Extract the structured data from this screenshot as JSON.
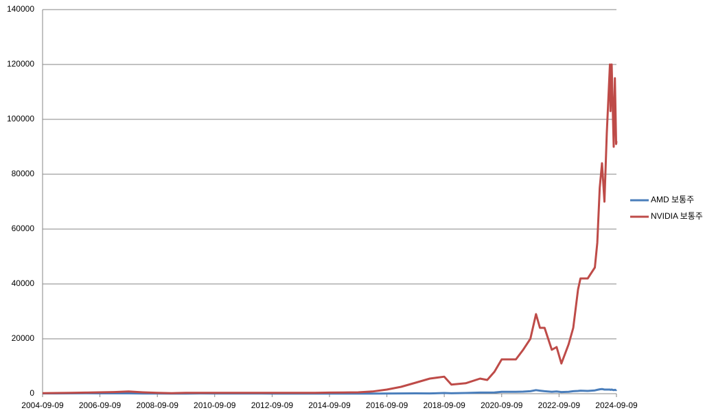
{
  "chart_data": {
    "type": "line",
    "x": [
      "2004-09-09",
      "2005-03-09",
      "2005-09-09",
      "2006-03-09",
      "2006-09-09",
      "2007-03-09",
      "2007-09-09",
      "2008-03-09",
      "2008-09-09",
      "2009-03-09",
      "2009-09-09",
      "2010-03-09",
      "2010-09-09",
      "2011-03-09",
      "2011-09-09",
      "2012-03-09",
      "2012-09-09",
      "2013-03-09",
      "2013-09-09",
      "2014-03-09",
      "2014-09-09",
      "2015-03-09",
      "2015-09-09",
      "2016-03-09",
      "2016-09-09",
      "2017-03-09",
      "2017-09-09",
      "2018-03-09",
      "2018-09-09",
      "2018-12-09",
      "2019-06-09",
      "2019-12-09",
      "2020-03-09",
      "2020-06-09",
      "2020-09-09",
      "2021-03-09",
      "2021-06-09",
      "2021-09-09",
      "2021-11-20",
      "2022-01-09",
      "2022-03-09",
      "2022-06-09",
      "2022-08-09",
      "2022-10-09",
      "2023-01-09",
      "2023-03-09",
      "2023-05-09",
      "2023-06-09",
      "2023-09-09",
      "2023-12-09",
      "2024-01-09",
      "2024-02-09",
      "2024-03-09",
      "2024-04-09",
      "2024-05-09",
      "2024-06-18",
      "2024-06-25",
      "2024-07-10",
      "2024-08-05",
      "2024-08-20",
      "2024-09-05",
      "2024-09-09"
    ],
    "xlim": [
      "2004-09-09",
      "2024-09-09"
    ],
    "xticks": [
      "2004-09-09",
      "2006-09-09",
      "2008-09-09",
      "2010-09-09",
      "2012-09-09",
      "2014-09-09",
      "2016-09-09",
      "2018-09-09",
      "2020-09-09",
      "2022-09-09",
      "2024-09-09"
    ],
    "ylim": [
      0,
      140000
    ],
    "yticks": [
      0,
      20000,
      40000,
      60000,
      80000,
      100000,
      120000,
      140000
    ],
    "grid": true,
    "legend": "right",
    "series": [
      {
        "name": "AMD 보통주",
        "color": "#4a7ebb",
        "values": [
          100,
          100,
          120,
          150,
          130,
          120,
          110,
          60,
          50,
          30,
          40,
          80,
          60,
          70,
          50,
          60,
          40,
          30,
          30,
          40,
          30,
          20,
          20,
          30,
          60,
          100,
          110,
          90,
          250,
          150,
          250,
          400,
          400,
          450,
          700,
          700,
          750,
          900,
          1300,
          1100,
          900,
          700,
          800,
          600,
          700,
          900,
          1000,
          1100,
          1000,
          1200,
          1400,
          1600,
          1700,
          1500,
          1500,
          1500,
          1400,
          1500,
          1300,
          1400,
          1300,
          1400
        ]
      },
      {
        "name": "NVIDIA 보통주",
        "color": "#be4b48",
        "values": [
          200,
          250,
          300,
          400,
          500,
          600,
          800,
          500,
          300,
          200,
          300,
          300,
          300,
          300,
          300,
          300,
          300,
          300,
          300,
          300,
          400,
          450,
          500,
          800,
          1500,
          2500,
          4000,
          5500,
          6200,
          3300,
          3800,
          5500,
          5000,
          8000,
          12500,
          12500,
          16000,
          20000,
          29000,
          24000,
          24000,
          16000,
          17000,
          11000,
          18000,
          24000,
          38000,
          42000,
          42000,
          46000,
          55000,
          75000,
          84000,
          70000,
          95000,
          120000,
          103000,
          120000,
          90000,
          115000,
          91000,
          92000
        ]
      }
    ]
  }
}
